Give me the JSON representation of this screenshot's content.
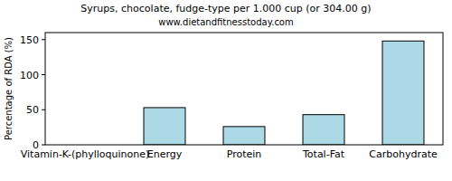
{
  "chart_data": {
    "type": "bar",
    "title": "Syrups, chocolate, fudge-type per 1.000 cup (or 304.00 g)",
    "subtitle": "www.dietandfitnesstoday.com",
    "y_label": "Percentage of RDA (%)",
    "categories": [
      "Vitamin-K-(phylloquinone)",
      "Energy",
      "Protein",
      "Total-Fat",
      "Carbohydrate"
    ],
    "values": [
      0,
      53,
      26,
      43,
      148
    ],
    "color": "#add8e6",
    "ylim": [
      0,
      160
    ],
    "yticks": [
      0,
      50,
      100,
      150
    ],
    "grid": false
  }
}
